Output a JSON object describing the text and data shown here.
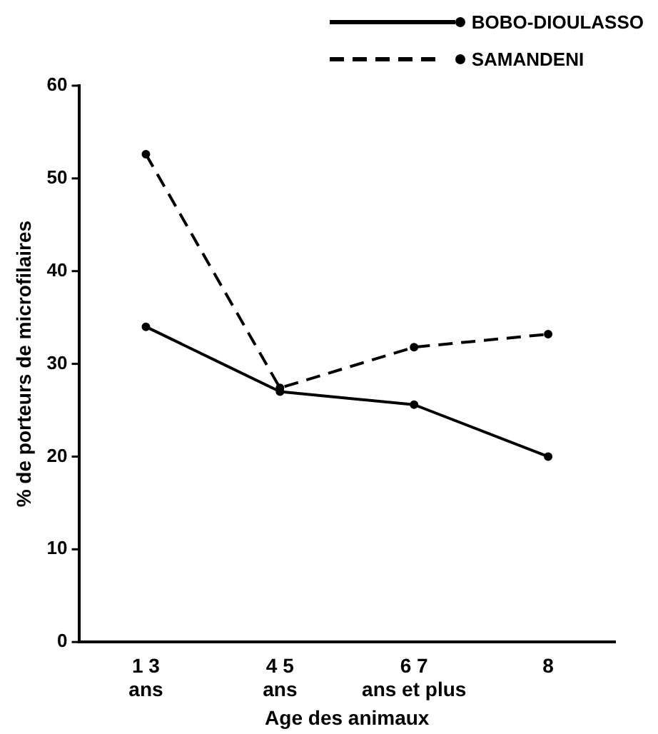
{
  "chart_data": {
    "type": "line",
    "xlabel": "Age des animaux",
    "ylabel": "% de porteurs de microfilaires",
    "categories": [
      "1 3\nans",
      "4 5\nans",
      "6 7\nans et plus",
      "8"
    ],
    "series": [
      {
        "name": "BOBO-DIOULASSO",
        "color": "#000000",
        "line_style": "solid",
        "values": [
          34,
          27,
          25.6,
          20
        ]
      },
      {
        "name": "SAMANDENI",
        "color": "#000000",
        "line_style": "dashed",
        "values": [
          52.6,
          27.4,
          31.8,
          33.2
        ]
      }
    ],
    "ylim": [
      0,
      60
    ],
    "yticks": [
      0,
      10,
      20,
      30,
      40,
      50,
      60
    ],
    "grid": false,
    "legend": "top right",
    "marker": "circle"
  }
}
